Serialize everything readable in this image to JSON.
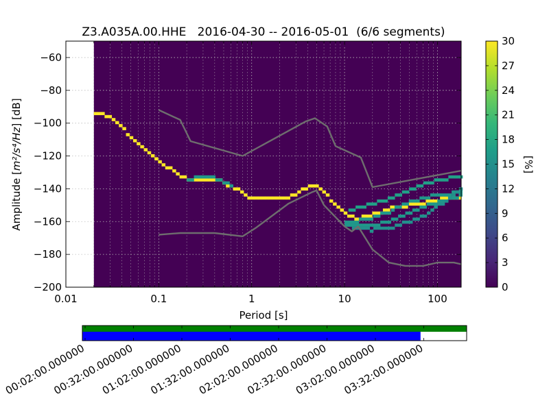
{
  "chart_data": {
    "type": "heatmap",
    "title": "Z3.A035A.00.HHE   2016-04-30 -- 2016-05-01  (6/6 segments)",
    "xlabel": "Period [s]",
    "ylabel_prefix": "Amplitude [",
    "ylabel_units": "m²/s⁴/Hz",
    "ylabel_suffix": "] [dB]",
    "x_scale": "log",
    "xlim": [
      0.01,
      180
    ],
    "ylim": [
      -200,
      -50
    ],
    "x_ticks": [
      {
        "value": 0.01,
        "label": "0.01"
      },
      {
        "value": 0.1,
        "label": "0.1"
      },
      {
        "value": 1,
        "label": "1"
      },
      {
        "value": 10,
        "label": "10"
      },
      {
        "value": 100,
        "label": "100"
      }
    ],
    "y_ticks": [
      {
        "value": -60,
        "label": "−60"
      },
      {
        "value": -80,
        "label": "−80"
      },
      {
        "value": -100,
        "label": "−100"
      },
      {
        "value": -120,
        "label": "−120"
      },
      {
        "value": -140,
        "label": "−140"
      },
      {
        "value": -160,
        "label": "−160"
      },
      {
        "value": -180,
        "label": "−180"
      },
      {
        "value": -200,
        "label": "−200"
      }
    ],
    "grid": true,
    "data_start_period": 0.02,
    "colorbar": {
      "label": "[%]",
      "range": [
        0,
        30
      ],
      "ticks": [
        "0",
        "3",
        "6",
        "9",
        "12",
        "15",
        "18",
        "21",
        "24",
        "27",
        "30"
      ],
      "colormap": "viridis"
    },
    "ppsd_max_line": [
      {
        "period": 0.1,
        "db": -92
      },
      {
        "period": 0.17,
        "db": -98
      },
      {
        "period": 0.22,
        "db": -111
      },
      {
        "period": 0.8,
        "db": -120
      },
      {
        "period": 3.8,
        "db": -99
      },
      {
        "period": 4.8,
        "db": -97
      },
      {
        "period": 6.5,
        "db": -102
      },
      {
        "period": 8,
        "db": -114
      },
      {
        "period": 15,
        "db": -121
      },
      {
        "period": 20,
        "db": -139
      },
      {
        "period": 180,
        "db": -129
      }
    ],
    "ppsd_min_line": [
      {
        "period": 0.1,
        "db": -168
      },
      {
        "period": 0.17,
        "db": -167
      },
      {
        "period": 0.4,
        "db": -167
      },
      {
        "period": 0.8,
        "db": -169
      },
      {
        "period": 1.1,
        "db": -164
      },
      {
        "period": 2.5,
        "db": -149
      },
      {
        "period": 4.5,
        "db": -142
      },
      {
        "period": 5,
        "db": -141
      },
      {
        "period": 6,
        "db": -150
      },
      {
        "period": 10,
        "db": -163
      },
      {
        "period": 12,
        "db": -166
      },
      {
        "period": 14,
        "db": -163
      },
      {
        "period": 20,
        "db": -177
      },
      {
        "period": 30,
        "db": -185
      },
      {
        "period": 45,
        "db": -187
      },
      {
        "period": 70,
        "db": -187
      },
      {
        "period": 100,
        "db": -185
      },
      {
        "period": 150,
        "db": -185
      },
      {
        "period": 180,
        "db": -186
      }
    ],
    "heat_series": [
      {
        "percent": 30,
        "points": [
          {
            "period": 0.02,
            "db": -93
          },
          {
            "period": 0.03,
            "db": -96
          },
          {
            "period": 0.05,
            "db": -108
          },
          {
            "period": 0.08,
            "db": -119
          },
          {
            "period": 0.12,
            "db": -126
          },
          {
            "period": 0.2,
            "db": -134
          },
          {
            "period": 0.3,
            "db": -135
          },
          {
            "period": 0.45,
            "db": -135
          },
          {
            "period": 0.6,
            "db": -139
          },
          {
            "period": 0.8,
            "db": -142
          },
          {
            "period": 0.9,
            "db": -146
          },
          {
            "period": 1.2,
            "db": -145
          },
          {
            "period": 2.5,
            "db": -145
          },
          {
            "period": 3.5,
            "db": -141
          },
          {
            "period": 4.5,
            "db": -138
          },
          {
            "period": 5.5,
            "db": -140
          },
          {
            "period": 7,
            "db": -146
          },
          {
            "period": 9,
            "db": -152
          },
          {
            "period": 11,
            "db": -157
          },
          {
            "period": 14,
            "db": -158
          },
          {
            "period": 20,
            "db": -156
          },
          {
            "period": 30,
            "db": -152
          },
          {
            "period": 50,
            "db": -150
          },
          {
            "period": 80,
            "db": -148
          },
          {
            "period": 120,
            "db": -146
          },
          {
            "period": 180,
            "db": -145
          }
        ]
      },
      {
        "percent": 16,
        "points": [
          {
            "period": 0.2,
            "db": -134
          },
          {
            "period": 0.3,
            "db": -133
          },
          {
            "period": 0.45,
            "db": -134
          },
          {
            "period": 0.6,
            "db": -138
          }
        ]
      },
      {
        "percent": 17,
        "points": [
          {
            "period": 11,
            "db": -153
          },
          {
            "period": 18,
            "db": -150
          },
          {
            "period": 30,
            "db": -146
          },
          {
            "period": 50,
            "db": -141
          },
          {
            "period": 80,
            "db": -136
          },
          {
            "period": 180,
            "db": -132
          }
        ]
      },
      {
        "percent": 16,
        "points": [
          {
            "period": 10,
            "db": -160
          },
          {
            "period": 18,
            "db": -159
          },
          {
            "period": 30,
            "db": -154
          },
          {
            "period": 50,
            "db": -148
          },
          {
            "period": 80,
            "db": -145
          },
          {
            "period": 180,
            "db": -142
          }
        ]
      },
      {
        "percent": 16,
        "points": [
          {
            "period": 10,
            "db": -162
          },
          {
            "period": 20,
            "db": -162
          },
          {
            "period": 30,
            "db": -160
          },
          {
            "period": 50,
            "db": -155
          },
          {
            "period": 80,
            "db": -150
          },
          {
            "period": 180,
            "db": -144
          }
        ]
      },
      {
        "percent": 15,
        "points": [
          {
            "period": 12,
            "db": -164
          },
          {
            "period": 20,
            "db": -165
          },
          {
            "period": 30,
            "db": -164
          },
          {
            "period": 50,
            "db": -160
          },
          {
            "period": 80,
            "db": -155
          },
          {
            "period": 180,
            "db": -140
          }
        ]
      }
    ],
    "timeline": {
      "tick_labels": [
        "00:02:00.000000",
        "00:32:00.000000",
        "01:02:00.000000",
        "01:32:00.000000",
        "02:02:00.000000",
        "02:32:00.000000",
        "03:02:00.000000",
        "03:32:00.000000"
      ],
      "data_color": "#008000",
      "used_color": "#0000ff",
      "used_fraction": 0.88
    }
  }
}
